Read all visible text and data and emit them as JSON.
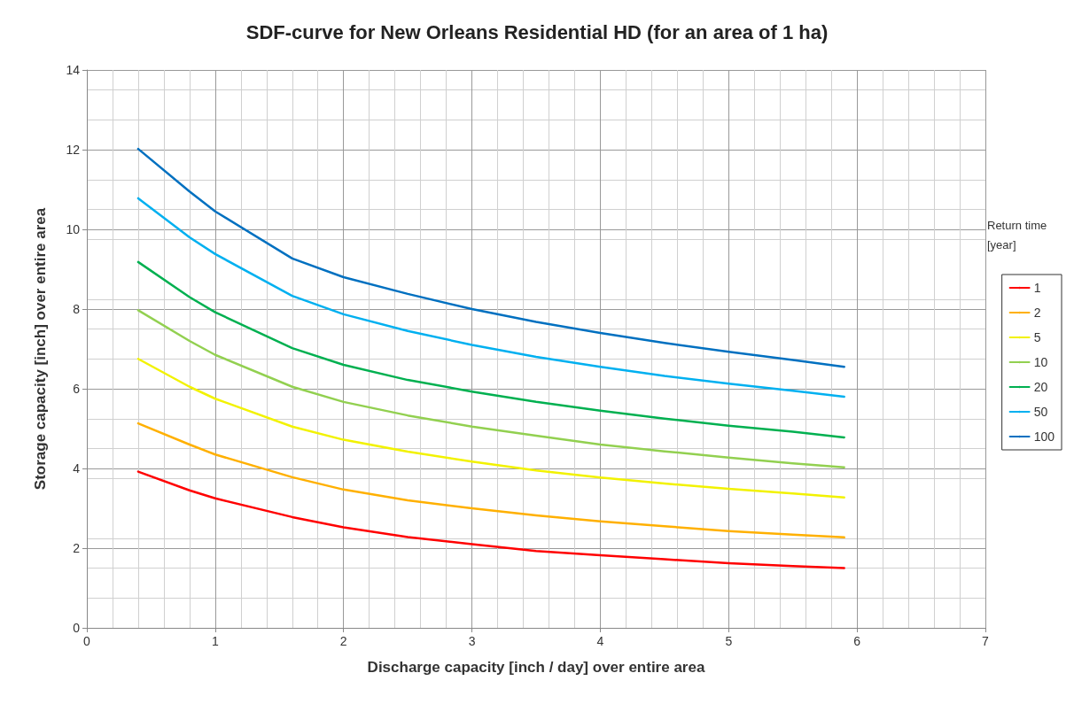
{
  "chart_data": {
    "type": "line",
    "title": "SDF-curve for New Orleans Residential HD (for an area of 1 ha)",
    "xlabel": "Discharge capacity [inch / day] over entire area",
    "ylabel": "Storage capacity [inch] over entire area",
    "legend_title": "Return time [year]",
    "x": [
      0.4,
      0.8,
      1.0,
      1.6,
      2.0,
      2.5,
      3.0,
      3.5,
      4.0,
      4.5,
      5.0,
      5.5,
      5.9
    ],
    "series": [
      {
        "name": "1",
        "color": "#ff0000",
        "values": [
          3.92,
          3.45,
          3.25,
          2.78,
          2.52,
          2.28,
          2.1,
          1.93,
          1.82,
          1.72,
          1.62,
          1.55,
          1.5
        ]
      },
      {
        "name": "2",
        "color": "#ffb000",
        "values": [
          5.13,
          4.6,
          4.35,
          3.78,
          3.47,
          3.2,
          3.0,
          2.82,
          2.67,
          2.55,
          2.43,
          2.34,
          2.27
        ]
      },
      {
        "name": "5",
        "color": "#f2f200",
        "values": [
          6.75,
          6.05,
          5.75,
          5.05,
          4.72,
          4.42,
          4.17,
          3.95,
          3.77,
          3.62,
          3.49,
          3.37,
          3.27
        ]
      },
      {
        "name": "10",
        "color": "#92d050",
        "values": [
          7.97,
          7.2,
          6.85,
          6.05,
          5.67,
          5.33,
          5.05,
          4.82,
          4.6,
          4.43,
          4.27,
          4.13,
          4.03
        ]
      },
      {
        "name": "20",
        "color": "#00b050",
        "values": [
          9.18,
          8.3,
          7.92,
          7.02,
          6.6,
          6.22,
          5.93,
          5.67,
          5.45,
          5.25,
          5.07,
          4.92,
          4.78
        ]
      },
      {
        "name": "50",
        "color": "#00b0f0",
        "values": [
          10.78,
          9.8,
          9.38,
          8.33,
          7.87,
          7.45,
          7.1,
          6.8,
          6.55,
          6.32,
          6.13,
          5.95,
          5.8
        ]
      },
      {
        "name": "100",
        "color": "#0070c0",
        "values": [
          12.02,
          10.95,
          10.45,
          9.27,
          8.8,
          8.38,
          8.0,
          7.68,
          7.4,
          7.15,
          6.93,
          6.72,
          6.55
        ]
      }
    ],
    "xlim": [
      0,
      7
    ],
    "xticks": [
      0,
      1,
      2,
      3,
      4,
      5,
      6,
      7
    ],
    "ylim": [
      0,
      14
    ],
    "yticks": [
      0,
      2,
      4,
      6,
      8,
      10,
      12,
      14
    ],
    "grid": true,
    "legend": "right",
    "marker": "none",
    "line_style": "solid"
  }
}
